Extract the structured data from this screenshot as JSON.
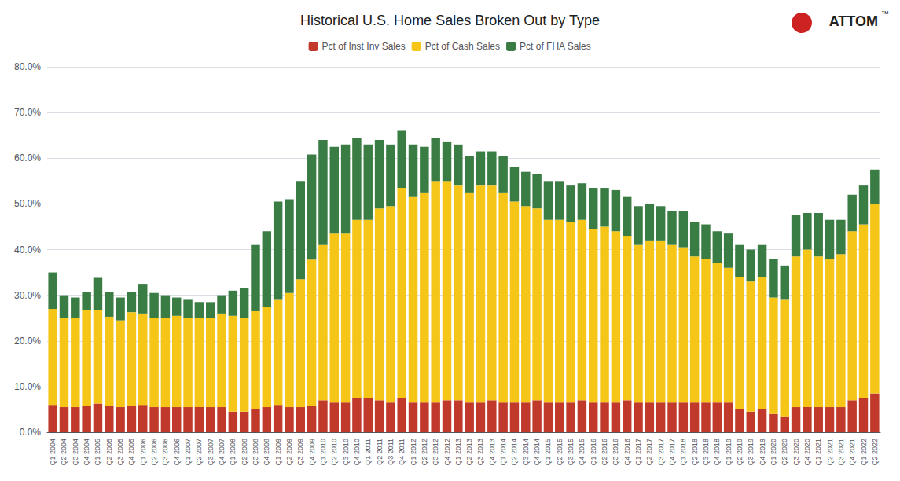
{
  "chart_data": {
    "type": "bar",
    "title": "Historical U.S. Home Sales Broken Out by Type",
    "stacked": true,
    "grid": true,
    "legend": "top",
    "annotations": [
      "ATTOM",
      "™"
    ],
    "categories": [
      "Q1 2004",
      "Q2 2004",
      "Q3 2004",
      "Q4 2004",
      "Q1 2005",
      "Q2 2005",
      "Q3 2005",
      "Q4 2005",
      "Q1 2006",
      "Q2 2006",
      "Q3 2006",
      "Q4 2006",
      "Q1 2007",
      "Q2 2007",
      "Q3 2007",
      "Q4 2007",
      "Q1 2008",
      "Q2 2008",
      "Q3 2008",
      "Q4 2008",
      "Q1 2009",
      "Q2 2009",
      "Q3 2009",
      "Q4 2009",
      "Q1 2010",
      "Q2 2010",
      "Q3 2010",
      "Q4 2010",
      "Q1 2011",
      "Q2 2011",
      "Q3 2011",
      "Q4 2011",
      "Q1 2012",
      "Q2 2012",
      "Q3 2012",
      "Q4 2012",
      "Q1 2013",
      "Q2 2013",
      "Q3 2013",
      "Q4 2013",
      "Q1 2014",
      "Q2 2014",
      "Q3 2014",
      "Q4 2014",
      "Q1 2015",
      "Q2 2015",
      "Q3 2015",
      "Q4 2015",
      "Q1 2016",
      "Q2 2016",
      "Q3 2016",
      "Q4 2016",
      "Q1 2017",
      "Q2 2017",
      "Q3 2017",
      "Q4 2017",
      "Q1 2018",
      "Q2 2018",
      "Q3 2018",
      "Q4 2018",
      "Q1 2019",
      "Q2 2019",
      "Q3 2019",
      "Q4 2019",
      "Q1 2020",
      "Q2 2020",
      "Q3 2020",
      "Q4 2020",
      "Q1 2021",
      "Q2 2021",
      "Q3 2021",
      "Q4 2021",
      "Q1 2022",
      "Q2 2022"
    ],
    "series": [
      {
        "name": "Pct of Inst Inv Sales",
        "color": "#c0392b",
        "values": [
          6.0,
          5.5,
          5.5,
          5.8,
          6.3,
          5.8,
          5.5,
          5.8,
          6.0,
          5.5,
          5.5,
          5.5,
          5.5,
          5.5,
          5.5,
          5.5,
          4.5,
          4.5,
          5.0,
          5.5,
          6.0,
          5.5,
          5.5,
          5.8,
          7.0,
          6.5,
          6.5,
          7.5,
          7.5,
          7.0,
          6.5,
          7.5,
          6.5,
          6.5,
          6.5,
          7.0,
          7.0,
          6.5,
          6.5,
          7.0,
          6.5,
          6.5,
          6.5,
          7.0,
          6.5,
          6.5,
          6.5,
          7.0,
          6.5,
          6.5,
          6.5,
          7.0,
          6.5,
          6.5,
          6.5,
          6.5,
          6.5,
          6.5,
          6.5,
          6.5,
          6.5,
          5.0,
          4.5,
          5.0,
          4.0,
          3.5,
          5.5,
          5.5,
          5.5,
          5.5,
          5.5,
          7.0,
          7.5,
          8.5
        ]
      },
      {
        "name": "Pct of Cash Sales",
        "color": "#f5c518",
        "values": [
          21.0,
          19.5,
          19.5,
          21.0,
          20.5,
          19.5,
          19.0,
          20.5,
          20.0,
          19.5,
          19.5,
          20.0,
          19.5,
          19.5,
          19.5,
          20.5,
          21.0,
          20.5,
          21.5,
          22.0,
          23.0,
          25.0,
          28.0,
          32.0,
          34.0,
          37.0,
          37.0,
          39.0,
          39.0,
          42.0,
          43.0,
          46.0,
          45.0,
          46.0,
          48.5,
          48.0,
          47.0,
          46.0,
          47.5,
          47.0,
          46.0,
          44.0,
          43.0,
          42.0,
          40.0,
          40.0,
          39.5,
          39.5,
          38.0,
          38.5,
          37.5,
          36.0,
          34.5,
          35.5,
          35.5,
          34.5,
          34.0,
          32.0,
          31.5,
          30.5,
          29.5,
          29.0,
          28.5,
          29.0,
          25.5,
          25.5,
          33.0,
          34.5,
          33.0,
          32.5,
          33.5,
          37.0,
          38.0,
          41.5
        ]
      },
      {
        "name": "Pct of FHA Sales",
        "color": "#3a7d44",
        "values": [
          8.0,
          5.0,
          4.5,
          4.0,
          7.0,
          5.5,
          5.0,
          4.5,
          6.5,
          5.5,
          5.0,
          4.0,
          4.0,
          3.5,
          3.5,
          4.0,
          5.5,
          6.5,
          14.5,
          16.5,
          21.5,
          20.5,
          21.5,
          23.0,
          23.0,
          19.0,
          19.5,
          18.0,
          16.5,
          15.0,
          13.5,
          12.5,
          11.5,
          10.0,
          9.5,
          8.5,
          9.0,
          8.0,
          7.5,
          7.5,
          8.0,
          7.5,
          7.5,
          7.5,
          8.5,
          8.5,
          8.0,
          8.0,
          9.0,
          8.5,
          9.0,
          8.5,
          8.5,
          8.0,
          7.5,
          7.5,
          8.0,
          7.5,
          7.5,
          7.0,
          7.5,
          7.0,
          7.0,
          7.0,
          8.5,
          7.5,
          9.0,
          8.0,
          9.5,
          8.5,
          7.5,
          8.0,
          8.5,
          7.5
        ]
      }
    ],
    "ylim": [
      0,
      80
    ],
    "yticks": [
      {
        "value": 0,
        "label": "0.0%"
      },
      {
        "value": 10,
        "label": "10.0%"
      },
      {
        "value": 20,
        "label": "20.0%"
      },
      {
        "value": 30,
        "label": "30.0%"
      },
      {
        "value": 40,
        "label": "40.0%"
      },
      {
        "value": 50,
        "label": "50.0%"
      },
      {
        "value": 60,
        "label": "60.0%"
      },
      {
        "value": 70,
        "label": "70.0%"
      },
      {
        "value": 80,
        "label": "80.0%"
      }
    ]
  }
}
